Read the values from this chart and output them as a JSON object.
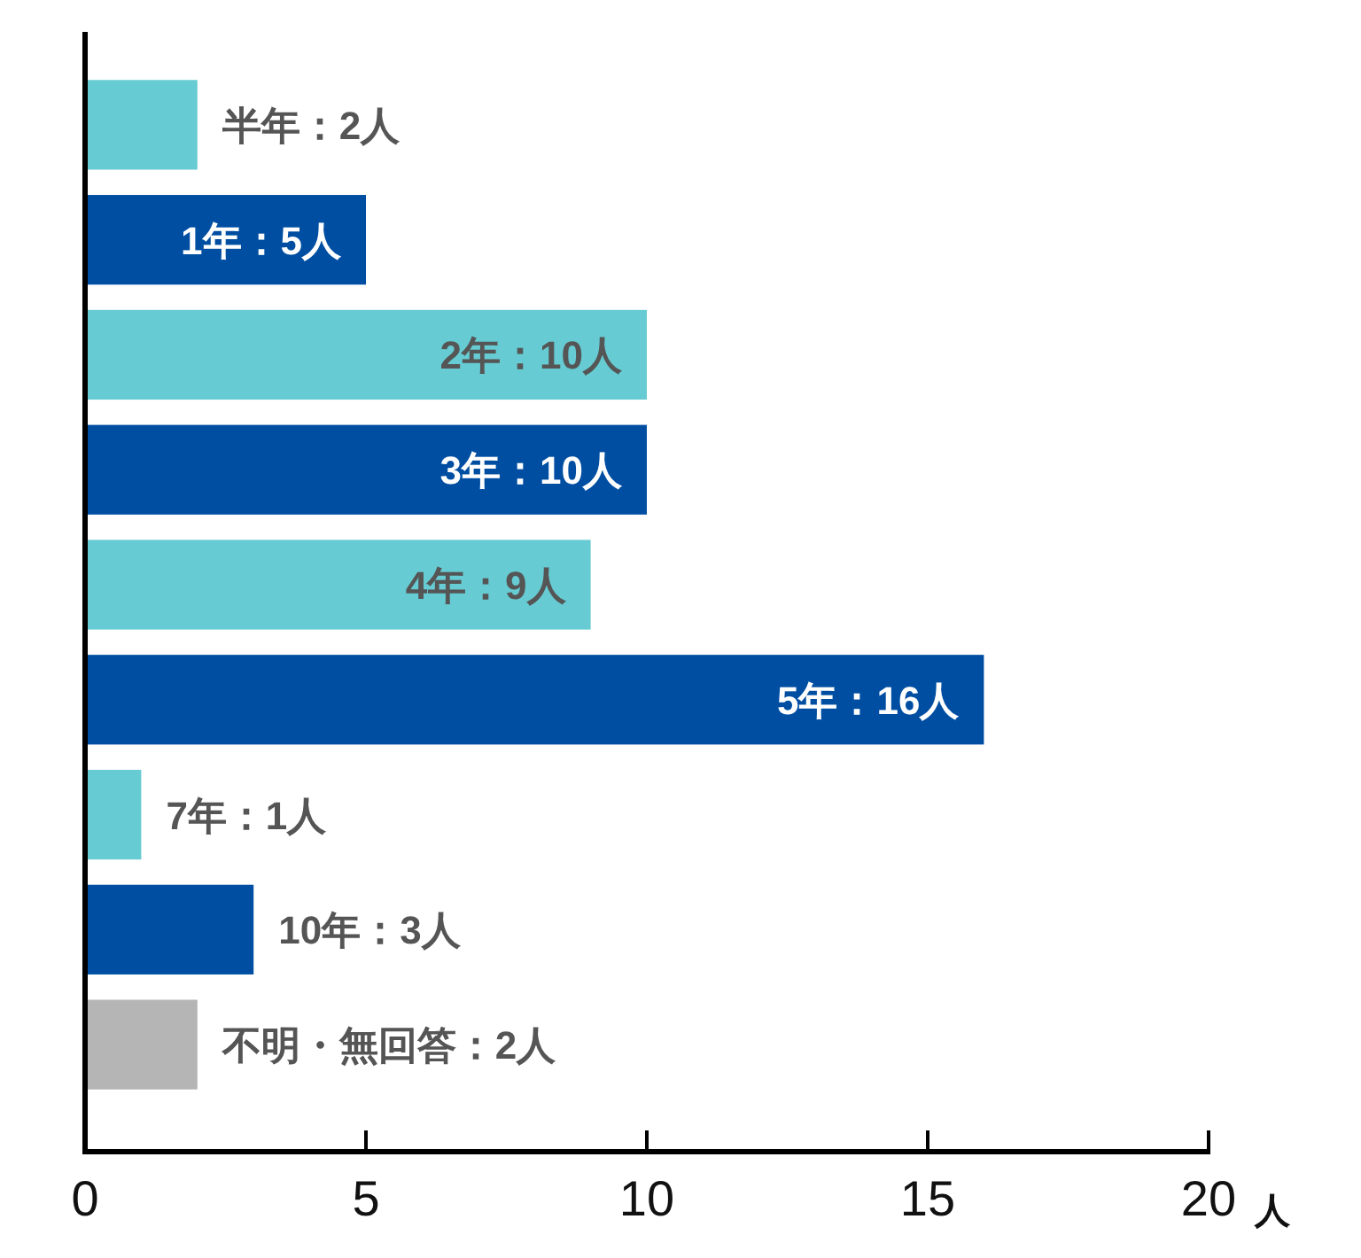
{
  "chart_data": {
    "type": "bar",
    "orientation": "horizontal",
    "tick_labels": "x",
    "xlabel": "人",
    "categories": [
      null,
      null,
      null,
      null,
      null,
      null,
      null,
      null,
      null
    ],
    "values": [
      2,
      5,
      10,
      10,
      9,
      16,
      1,
      3,
      2
    ],
    "colors": [
      "#66cbd2",
      "#004ea2",
      "#66cbd2",
      "#004ea2",
      "#66cbd2",
      "#004ea2",
      "#66cbd2",
      "#004ea2",
      "#b5b5b5"
    ],
    "value_labels": [
      "半年：2人",
      "1年：5人",
      "2年：10人",
      "3年：10人",
      "4年：9人",
      "5年：16人",
      "7年：1人",
      "10年：3人",
      "不明・無回答：2人"
    ],
    "xlim": [
      0,
      20
    ],
    "xticks": [
      0,
      5,
      10,
      15,
      20
    ]
  }
}
